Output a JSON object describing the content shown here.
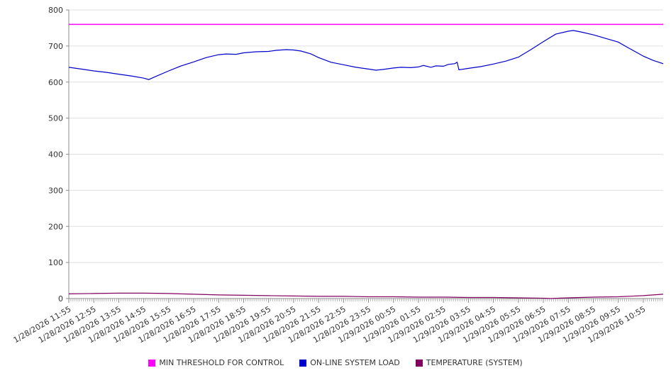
{
  "chart_data": {
    "type": "line",
    "title": "",
    "xlabel": "",
    "ylabel": "",
    "ylim": [
      0,
      800
    ],
    "y_ticks": [
      0,
      100,
      200,
      300,
      400,
      500,
      600,
      700,
      800
    ],
    "x_max": 23.8,
    "grid": true,
    "legend_position": "bottom",
    "colors": {
      "grid": "#e0e0e0",
      "axis": "#8c8c8c",
      "text": "#333333",
      "background": "#ffffff"
    },
    "x_tick_labels": [
      "1/28/2026 11:55",
      "1/28/2026 12:55",
      "1/28/2026 13:55",
      "1/28/2026 14:55",
      "1/28/2026 15:55",
      "1/28/2026 16:55",
      "1/28/2026 17:55",
      "1/28/2026 18:55",
      "1/28/2026 19:55",
      "1/28/2026 20:55",
      "1/28/2026 21:55",
      "1/28/2026 22:55",
      "1/28/2026 23:55",
      "1/29/2026 00:55",
      "1/29/2026 01:55",
      "1/29/2026 02:55",
      "1/29/2026 03:55",
      "1/29/2026 04:55",
      "1/29/2026 05:55",
      "1/29/2026 06:55",
      "1/29/2026 07:55",
      "1/29/2026 08:55",
      "1/29/2026 09:55",
      "1/29/2026 10:55"
    ],
    "series": [
      {
        "name": "MIN THRESHOLD FOR CONTROL",
        "color": "#ff00ff",
        "width": 1.5,
        "x": [
          0,
          23.8
        ],
        "values": [
          760,
          760
        ]
      },
      {
        "name": "ON-LINE SYSTEM LOAD",
        "color": "#0000cc",
        "width": 1.2,
        "x": [
          0,
          0.5,
          1,
          1.5,
          2,
          2.5,
          3,
          3.2,
          3.5,
          4,
          4.5,
          5,
          5.5,
          6,
          6.3,
          6.7,
          7,
          7.5,
          8,
          8.3,
          8.7,
          9,
          9.3,
          9.7,
          10,
          10.5,
          11,
          11.5,
          12,
          12.3,
          12.6,
          13,
          13.3,
          13.7,
          14,
          14.2,
          14.5,
          14.7,
          15,
          15.2,
          15.45,
          15.55,
          15.62,
          16,
          16.5,
          17,
          17.5,
          18,
          18.5,
          19,
          19.5,
          20,
          20.2,
          20.5,
          21,
          21.5,
          22,
          22.4,
          22.8,
          23,
          23.4,
          23.8
        ],
        "values": [
          641,
          636,
          631,
          627,
          622,
          617,
          611,
          607,
          616,
          631,
          645,
          656,
          668,
          676,
          678,
          677,
          681,
          684,
          685,
          688,
          690,
          689,
          686,
          678,
          668,
          655,
          648,
          641,
          636,
          633,
          635,
          639,
          641,
          640,
          642,
          646,
          641,
          645,
          644,
          649,
          651,
          655,
          634,
          638,
          643,
          650,
          658,
          669,
          690,
          712,
          733,
          741,
          743,
          739,
          731,
          721,
          711,
          695,
          680,
          672,
          660,
          651
        ]
      },
      {
        "name": "TEMPERATURE (SYSTEM)",
        "color": "#800060",
        "width": 1.2,
        "x": [
          0,
          1,
          2,
          3,
          4,
          5,
          6,
          7,
          8,
          9,
          10,
          11,
          12,
          13,
          14,
          15,
          16,
          17,
          18,
          19,
          19.3,
          19.6,
          20,
          21,
          22,
          23,
          23.4,
          23.8
        ],
        "values": [
          13,
          14,
          15,
          15,
          14,
          12,
          10,
          9,
          8,
          7,
          6,
          6,
          5,
          5,
          4,
          4,
          3,
          3,
          2,
          1,
          0,
          1,
          2,
          4,
          5,
          8,
          10,
          12
        ]
      }
    ]
  }
}
